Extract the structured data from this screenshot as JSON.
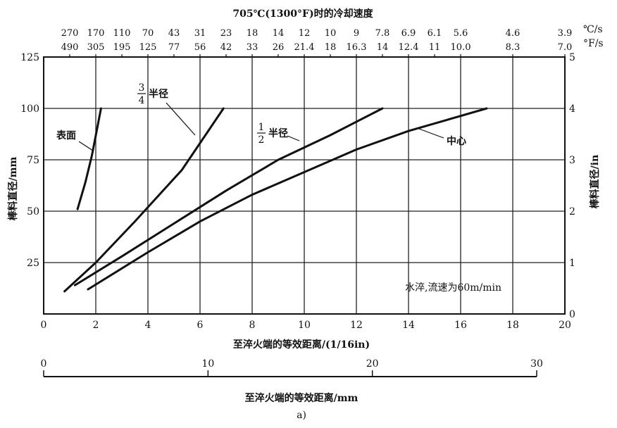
{
  "chart_data": {
    "type": "line",
    "top_title": "705℃(1300°F)时的冷却速度",
    "top_unit_c": "℃/s",
    "top_unit_f": "°F/s",
    "top_ticks": [
      {
        "x": 1,
        "c": "270",
        "f": "490"
      },
      {
        "x": 2,
        "c": "170",
        "f": "305"
      },
      {
        "x": 3,
        "c": "110",
        "f": "195"
      },
      {
        "x": 4,
        "c": "70",
        "f": "125"
      },
      {
        "x": 5,
        "c": "43",
        "f": "77"
      },
      {
        "x": 6,
        "c": "31",
        "f": "56"
      },
      {
        "x": 7,
        "c": "23",
        "f": "42"
      },
      {
        "x": 8,
        "c": "18",
        "f": "33"
      },
      {
        "x": 9,
        "c": "14",
        "f": "26"
      },
      {
        "x": 10,
        "c": "12",
        "f": "21.4"
      },
      {
        "x": 11,
        "c": "10",
        "f": "18"
      },
      {
        "x": 12,
        "c": "9",
        "f": "16.3"
      },
      {
        "x": 13,
        "c": "7.8",
        "f": "14"
      },
      {
        "x": 14,
        "c": "6.9",
        "f": "12.4"
      },
      {
        "x": 15,
        "c": "6.1",
        "f": "11"
      },
      {
        "x": 16,
        "c": "5.6",
        "f": "10.0"
      },
      {
        "x": 18,
        "c": "4.6",
        "f": "8.3"
      },
      {
        "x": 20,
        "c": "3.9",
        "f": "7.0"
      }
    ],
    "xlabel": "至淬火端的等效距离/(1/16in)",
    "xlim": [
      0,
      20
    ],
    "xticks": [
      "0",
      "2",
      "4",
      "6",
      "8",
      "10",
      "12",
      "14",
      "16",
      "18",
      "20"
    ],
    "ylabel_left": "棒料直径/mm",
    "ylim_left": [
      0,
      125
    ],
    "yticks_left": [
      "25",
      "50",
      "75",
      "100",
      "125"
    ],
    "ylabel_right": "棒料直径/in",
    "ylim_right": [
      0,
      5
    ],
    "yticks_right": [
      "0",
      "1",
      "2",
      "3",
      "4",
      "5"
    ],
    "mm_axis_label": "至淬火端的等效距离/mm",
    "mm_axis_ticks": [
      "0",
      "10",
      "20",
      "30"
    ],
    "mm_axis_range": [
      0,
      30
    ],
    "annotation": "水淬,流速为60m/min",
    "caption": "a)",
    "grid": true,
    "series": [
      {
        "name": "表面",
        "points": [
          [
            1.3,
            51
          ],
          [
            1.6,
            64
          ],
          [
            1.85,
            77
          ],
          [
            2.05,
            90
          ],
          [
            2.2,
            100
          ]
        ]
      },
      {
        "name": "3/4半径",
        "points": [
          [
            0.8,
            11
          ],
          [
            2.0,
            25
          ],
          [
            3.5,
            45
          ],
          [
            5.3,
            70
          ],
          [
            6.9,
            100
          ]
        ]
      },
      {
        "name": "1/2半径",
        "points": [
          [
            1.2,
            14
          ],
          [
            3,
            28
          ],
          [
            5,
            44
          ],
          [
            7,
            60
          ],
          [
            9,
            75
          ],
          [
            11,
            87
          ],
          [
            13,
            100
          ]
        ]
      },
      {
        "name": "中心",
        "points": [
          [
            1.7,
            12
          ],
          [
            4,
            30
          ],
          [
            6,
            45
          ],
          [
            8,
            58
          ],
          [
            10,
            69
          ],
          [
            12,
            80
          ],
          [
            14,
            89
          ],
          [
            17,
            100
          ]
        ]
      }
    ],
    "series_labels": {
      "surface": "表面",
      "three_quarter_num": "3",
      "three_quarter_den": "4",
      "three_quarter_text": "半径",
      "half_num": "1",
      "half_den": "2",
      "half_text": "半径",
      "center": "中心"
    }
  }
}
